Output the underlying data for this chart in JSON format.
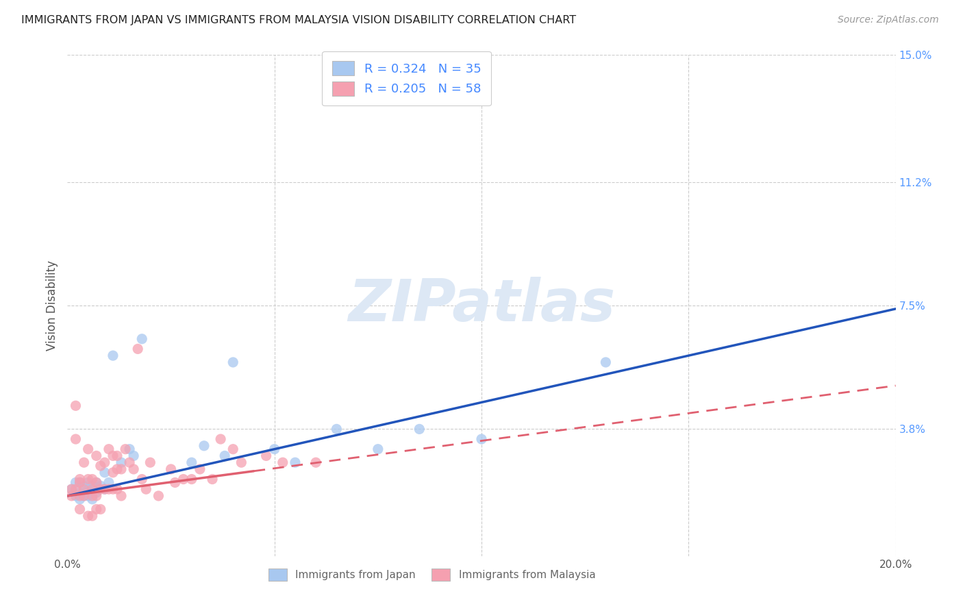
{
  "title": "IMMIGRANTS FROM JAPAN VS IMMIGRANTS FROM MALAYSIA VISION DISABILITY CORRELATION CHART",
  "source": "Source: ZipAtlas.com",
  "ylabel": "Vision Disability",
  "xlim": [
    0.0,
    0.2
  ],
  "ylim": [
    0.0,
    0.15
  ],
  "ytick_labels_right": [
    "15.0%",
    "11.2%",
    "7.5%",
    "3.8%",
    ""
  ],
  "ytick_values_right": [
    0.15,
    0.112,
    0.075,
    0.038,
    0.0
  ],
  "japan_R": 0.324,
  "japan_N": 35,
  "malaysia_R": 0.205,
  "malaysia_N": 58,
  "japan_color": "#a8c8f0",
  "malaysia_color": "#f5a0b0",
  "japan_line_color": "#2255bb",
  "malaysia_line_color": "#e06070",
  "watermark": "ZIPatlas",
  "japan_scatter_x": [
    0.001,
    0.002,
    0.002,
    0.003,
    0.003,
    0.003,
    0.004,
    0.004,
    0.005,
    0.005,
    0.005,
    0.006,
    0.006,
    0.007,
    0.007,
    0.008,
    0.009,
    0.009,
    0.01,
    0.011,
    0.013,
    0.015,
    0.016,
    0.018,
    0.03,
    0.033,
    0.038,
    0.04,
    0.05,
    0.055,
    0.065,
    0.075,
    0.085,
    0.1,
    0.13
  ],
  "japan_scatter_y": [
    0.02,
    0.018,
    0.022,
    0.019,
    0.022,
    0.017,
    0.021,
    0.018,
    0.02,
    0.022,
    0.018,
    0.021,
    0.017,
    0.022,
    0.019,
    0.021,
    0.025,
    0.02,
    0.022,
    0.06,
    0.028,
    0.032,
    0.03,
    0.065,
    0.028,
    0.033,
    0.03,
    0.058,
    0.032,
    0.028,
    0.038,
    0.032,
    0.038,
    0.035,
    0.058
  ],
  "malaysia_scatter_x": [
    0.001,
    0.001,
    0.002,
    0.002,
    0.002,
    0.003,
    0.003,
    0.003,
    0.003,
    0.004,
    0.004,
    0.004,
    0.005,
    0.005,
    0.005,
    0.006,
    0.006,
    0.006,
    0.006,
    0.007,
    0.007,
    0.007,
    0.007,
    0.008,
    0.008,
    0.008,
    0.009,
    0.009,
    0.01,
    0.01,
    0.011,
    0.011,
    0.011,
    0.012,
    0.012,
    0.012,
    0.013,
    0.013,
    0.014,
    0.015,
    0.016,
    0.017,
    0.018,
    0.019,
    0.02,
    0.022,
    0.025,
    0.026,
    0.028,
    0.03,
    0.032,
    0.035,
    0.037,
    0.04,
    0.042,
    0.048,
    0.052,
    0.06
  ],
  "malaysia_scatter_y": [
    0.02,
    0.018,
    0.045,
    0.035,
    0.02,
    0.022,
    0.018,
    0.023,
    0.014,
    0.02,
    0.018,
    0.028,
    0.032,
    0.023,
    0.012,
    0.02,
    0.018,
    0.023,
    0.012,
    0.022,
    0.018,
    0.03,
    0.014,
    0.027,
    0.02,
    0.014,
    0.02,
    0.028,
    0.032,
    0.02,
    0.025,
    0.02,
    0.03,
    0.026,
    0.02,
    0.03,
    0.026,
    0.018,
    0.032,
    0.028,
    0.026,
    0.062,
    0.023,
    0.02,
    0.028,
    0.018,
    0.026,
    0.022,
    0.023,
    0.023,
    0.026,
    0.023,
    0.035,
    0.032,
    0.028,
    0.03,
    0.028,
    0.028
  ],
  "japan_line_slope": 0.28,
  "japan_line_intercept": 0.018,
  "malaysia_line_slope": 0.165,
  "malaysia_line_intercept": 0.018,
  "malaysia_line_dashed_from": 0.045,
  "background_color": "#ffffff",
  "grid_color": "#cccccc"
}
